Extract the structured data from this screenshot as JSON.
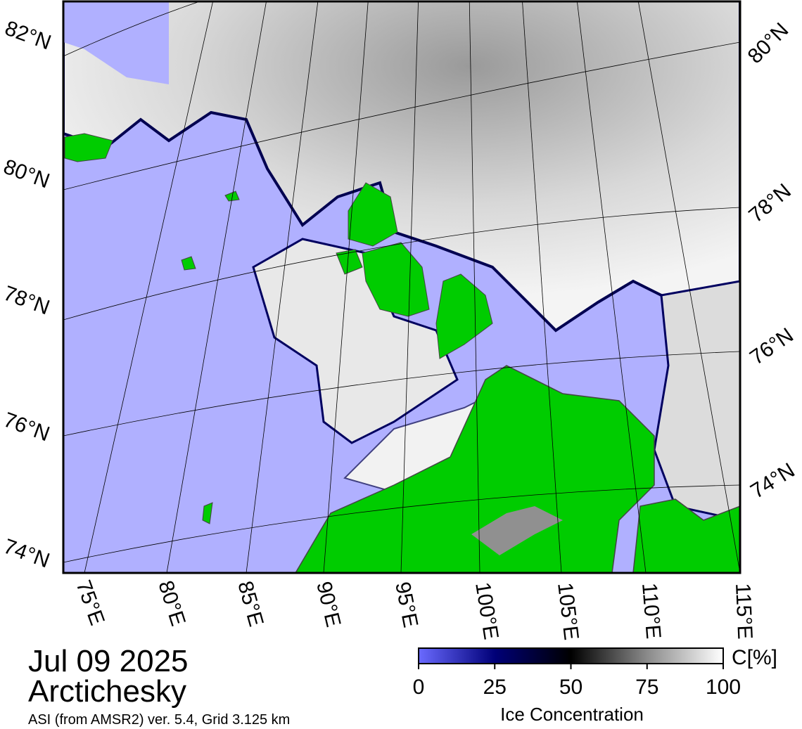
{
  "title": {
    "date": "Jul 09 2025",
    "region": "Arctichesky"
  },
  "source": "ASI (from AMSR2) ver. 5.4,  Grid 3.125 km",
  "map": {
    "left_lat_labels": [
      "82°N",
      "80°N",
      "78°N",
      "76°N",
      "74°N"
    ],
    "right_lat_labels": [
      "80°N",
      "78°N",
      "76°N",
      "74°N"
    ],
    "lon_labels": [
      "75°E",
      "80°E",
      "85°E",
      "90°E",
      "95°E",
      "100°E",
      "105°E",
      "110°E",
      "115°E"
    ]
  },
  "colorbar": {
    "label": "Ice Concentration",
    "unit": "C[%]",
    "lim": [
      0,
      100
    ],
    "ticks": [
      0,
      25,
      50,
      75,
      100
    ]
  }
}
